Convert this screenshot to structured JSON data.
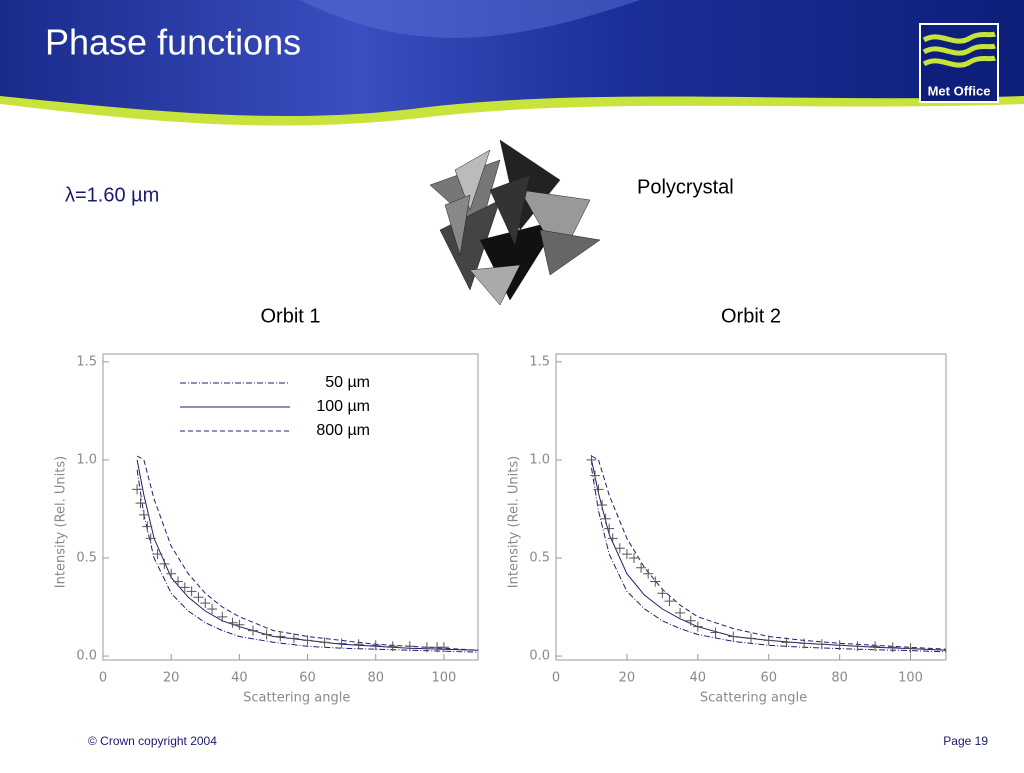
{
  "slide": {
    "title": "Phase functions",
    "logo": "Met Office",
    "wavelength": "λ=1.60 µm",
    "crystal": "Polycrystal",
    "copyright": "© Crown copyright 2004",
    "page": "Page 19"
  },
  "chart_data": [
    {
      "type": "line",
      "title": "Orbit 1",
      "x_label": "Scattering angle",
      "y_label": "Intensity (Rel. Units)",
      "xlim": [
        0,
        110
      ],
      "ylim": [
        -0.02,
        1.54
      ],
      "xticks": [
        0,
        20,
        40,
        60,
        80,
        100
      ],
      "yticks": [
        {
          "value": 0,
          "label": "0.0"
        },
        {
          "value": 0.5,
          "label": "0.5"
        },
        {
          "value": 1,
          "label": "1.0"
        },
        {
          "value": 1.5,
          "label": "1.5"
        }
      ],
      "legend": true,
      "series": [
        {
          "name": "50 µm",
          "style": "dashdot",
          "color": "#1f1f6e",
          "x": [
            10,
            12,
            15,
            20,
            25,
            30,
            35,
            40,
            50,
            60,
            70,
            80,
            90,
            100,
            110
          ],
          "values": [
            0.95,
            0.72,
            0.5,
            0.32,
            0.23,
            0.17,
            0.13,
            0.1,
            0.07,
            0.05,
            0.04,
            0.035,
            0.03,
            0.025,
            0.02
          ]
        },
        {
          "name": "100 µm",
          "style": "solid",
          "color": "#1f1f6e",
          "x": [
            10,
            12,
            15,
            20,
            25,
            30,
            35,
            40,
            50,
            60,
            70,
            80,
            90,
            100,
            110
          ],
          "values": [
            1.0,
            0.82,
            0.6,
            0.4,
            0.3,
            0.23,
            0.18,
            0.15,
            0.1,
            0.08,
            0.06,
            0.05,
            0.04,
            0.035,
            0.03
          ]
        },
        {
          "name": "800 µm",
          "style": "dashed",
          "color": "#1f1f6e",
          "x": [
            10,
            12,
            15,
            20,
            25,
            30,
            35,
            40,
            50,
            60,
            70,
            80,
            90,
            100,
            110
          ],
          "values": [
            1.02,
            1.0,
            0.8,
            0.56,
            0.42,
            0.32,
            0.25,
            0.2,
            0.13,
            0.1,
            0.08,
            0.06,
            0.05,
            0.04,
            0.03
          ]
        },
        {
          "style": "cross",
          "color": "#555555",
          "x": [
            10,
            11,
            12,
            13,
            14,
            16,
            18,
            20,
            22,
            24,
            26,
            28,
            30,
            32,
            35,
            38,
            40,
            44,
            48,
            52,
            56,
            60,
            65,
            70,
            75,
            80,
            85,
            90,
            95,
            98,
            100
          ],
          "values": [
            0.85,
            0.78,
            0.72,
            0.66,
            0.6,
            0.52,
            0.47,
            0.42,
            0.38,
            0.35,
            0.33,
            0.3,
            0.27,
            0.24,
            0.2,
            0.17,
            0.16,
            0.13,
            0.11,
            0.1,
            0.09,
            0.08,
            0.07,
            0.065,
            0.06,
            0.055,
            0.05,
            0.05,
            0.045,
            0.045,
            0.045
          ]
        }
      ]
    },
    {
      "type": "line",
      "title": "Orbit 2",
      "x_label": "Scattering angle",
      "y_label": "Intensity (Rel. Units)",
      "xlim": [
        0,
        110
      ],
      "ylim": [
        -0.02,
        1.54
      ],
      "xticks": [
        0,
        20,
        40,
        60,
        80,
        100
      ],
      "yticks": [
        {
          "value": 0,
          "label": "0.0"
        },
        {
          "value": 0.5,
          "label": "0.5"
        },
        {
          "value": 1,
          "label": "1.0"
        },
        {
          "value": 1.5,
          "label": "1.5"
        }
      ],
      "legend": false,
      "series": [
        {
          "name": "50 µm",
          "style": "dashdot",
          "color": "#1f1f6e",
          "x": [
            10,
            12,
            15,
            20,
            25,
            30,
            35,
            40,
            50,
            60,
            70,
            80,
            90,
            100,
            110
          ],
          "values": [
            0.96,
            0.74,
            0.52,
            0.33,
            0.24,
            0.18,
            0.14,
            0.11,
            0.075,
            0.055,
            0.045,
            0.038,
            0.032,
            0.028,
            0.022
          ]
        },
        {
          "name": "100 µm",
          "style": "solid",
          "color": "#1f1f6e",
          "x": [
            10,
            12,
            15,
            20,
            25,
            30,
            35,
            40,
            50,
            60,
            70,
            80,
            90,
            100,
            110
          ],
          "values": [
            1.0,
            0.83,
            0.62,
            0.42,
            0.31,
            0.24,
            0.19,
            0.15,
            0.1,
            0.08,
            0.065,
            0.055,
            0.045,
            0.038,
            0.03
          ]
        },
        {
          "name": "800 µm",
          "style": "dashed",
          "color": "#1f1f6e",
          "x": [
            10,
            12,
            15,
            20,
            25,
            30,
            35,
            40,
            50,
            60,
            70,
            80,
            90,
            100,
            110
          ],
          "values": [
            1.02,
            1.0,
            0.82,
            0.6,
            0.45,
            0.34,
            0.26,
            0.2,
            0.14,
            0.1,
            0.08,
            0.065,
            0.055,
            0.045,
            0.035
          ]
        },
        {
          "style": "cross",
          "color": "#555555",
          "x": [
            10,
            11,
            12,
            13,
            14,
            15,
            16,
            18,
            20,
            22,
            24,
            26,
            28,
            30,
            32,
            35,
            38,
            40,
            45,
            50,
            55,
            60,
            65,
            70,
            75,
            80,
            85,
            90,
            95,
            100
          ],
          "values": [
            1.0,
            0.92,
            0.85,
            0.77,
            0.7,
            0.65,
            0.6,
            0.55,
            0.52,
            0.5,
            0.45,
            0.42,
            0.38,
            0.32,
            0.28,
            0.22,
            0.18,
            0.15,
            0.12,
            0.1,
            0.09,
            0.08,
            0.07,
            0.065,
            0.06,
            0.055,
            0.05,
            0.05,
            0.045,
            0.04
          ]
        }
      ]
    }
  ]
}
